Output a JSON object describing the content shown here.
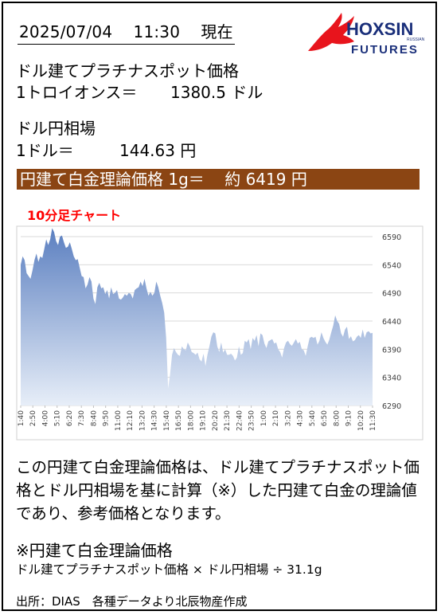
{
  "header": {
    "date": "2025/07/04",
    "time": "11:30",
    "status": "現在"
  },
  "logo": {
    "brand": "HOXSIN",
    "sub": "FUTURES",
    "tag": "RUSSIAN"
  },
  "platinum": {
    "title": "ドル建てプラチナスポット価格",
    "unit_label": "1トロイオンス＝",
    "value": "1380.5",
    "unit": "ドル"
  },
  "fx": {
    "title": "ドル円相場",
    "unit_label": "1ドル＝",
    "value": "144.63",
    "unit": "円"
  },
  "theoretical": {
    "label": "円建て白金理論価格",
    "per": "1g＝",
    "approx": "約",
    "value": "6419",
    "unit": "円"
  },
  "chart_title": "10分足チャート",
  "chart_data": {
    "type": "area",
    "ylim": [
      6290,
      6590
    ],
    "yticks": [
      "6590",
      "6540",
      "6490",
      "6440",
      "6390",
      "6340",
      "6290"
    ],
    "ytick_values": [
      6590,
      6540,
      6490,
      6440,
      6390,
      6340,
      6290
    ],
    "xtick_labels": [
      "1:40",
      "2:50",
      "4:00",
      "5:10",
      "6:20",
      "7:30",
      "8:40",
      "9:50",
      "11:00",
      "12:10",
      "13:20",
      "14:30",
      "15:40",
      "16:50",
      "18:00",
      "19:10",
      "20:20",
      "21:30",
      "22:40",
      "23:50",
      "1:00",
      "2:10",
      "3:20",
      "4:30",
      "5:40",
      "6:50",
      "8:00",
      "9:10",
      "10:20",
      "11:30"
    ],
    "grid": true,
    "series": [
      {
        "values": [
          6540,
          6555,
          6548,
          6525,
          6520,
          6515,
          6530,
          6548,
          6560,
          6545,
          6555,
          6552,
          6568,
          6585,
          6575,
          6585,
          6605,
          6598,
          6582,
          6575,
          6590,
          6592,
          6580,
          6570,
          6572,
          6580,
          6568,
          6555,
          6548,
          6550,
          6535,
          6520,
          6518,
          6498,
          6505,
          6518,
          6510,
          6480,
          6470,
          6500,
          6508,
          6498,
          6500,
          6488,
          6495,
          6480,
          6500,
          6488,
          6490,
          6495,
          6480,
          6478,
          6482,
          6488,
          6485,
          6490,
          6488,
          6480,
          6495,
          6498,
          6500,
          6510,
          6502,
          6515,
          6498,
          6485,
          6492,
          6485,
          6490,
          6510,
          6500,
          6485,
          6472,
          6455,
          6410,
          6320,
          6345,
          6380,
          6392,
          6385,
          6380,
          6378,
          6395,
          6390,
          6388,
          6402,
          6395,
          6385,
          6383,
          6380,
          6384,
          6372,
          6368,
          6382,
          6360,
          6380,
          6395,
          6412,
          6420,
          6418,
          6395,
          6385,
          6402,
          6384,
          6390,
          6380,
          6380,
          6382,
          6378,
          6370,
          6375,
          6395,
          6380,
          6383,
          6405,
          6402,
          6408,
          6390,
          6410,
          6405,
          6415,
          6395,
          6418,
          6415,
          6400,
          6392,
          6404,
          6406,
          6408,
          6400,
          6402,
          6390,
          6385,
          6375,
          6392,
          6402,
          6405,
          6399,
          6396,
          6402,
          6408,
          6400,
          6403,
          6390,
          6388,
          6378,
          6395,
          6410,
          6412,
          6410,
          6412,
          6398,
          6405,
          6420,
          6410,
          6403,
          6398,
          6407,
          6420,
          6432,
          6450,
          6440,
          6435,
          6418,
          6412,
          6425,
          6430,
          6408,
          6413,
          6404,
          6406,
          6412,
          6415,
          6410,
          6425,
          6410,
          6420,
          6422,
          6418,
          6419
        ]
      }
    ]
  },
  "description": "この円建て白金理論価格は、ドル建てプラチナスポット価格とドル円相場を基に計算（※）した円建て白金の理論値であり、参考価格となります。",
  "formula": {
    "title": "※円建て白金理論価格",
    "text": "ドル建てプラチナスポット価格 × ドル円相場 ÷ 31.1g"
  },
  "source": "出所：DIAS　各種データより北辰物産作成",
  "colors": {
    "band": "#8B4513",
    "chart_top": "#5b7fc0",
    "chart_bottom": "#e7eef8",
    "chart_label": "#ff0000",
    "logo_red": "#e8141c",
    "logo_blue": "#1a2f7a"
  }
}
